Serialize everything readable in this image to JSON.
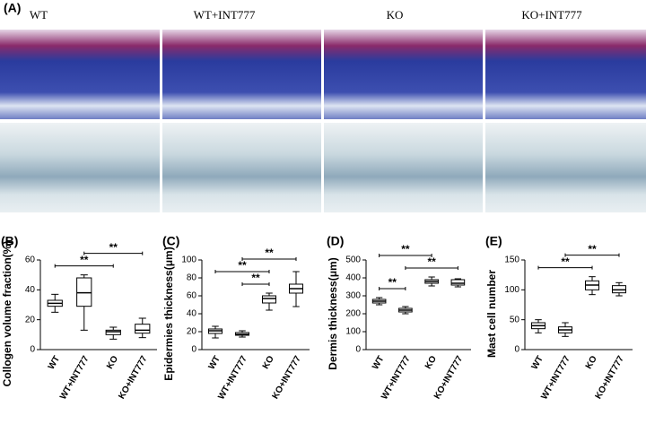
{
  "panel_a": {
    "label": "(A)",
    "columns": [
      "WT",
      "WT+INT777",
      "KO",
      "KO+INT777"
    ]
  },
  "chart_data": [
    {
      "type": "box",
      "panel": "(B)",
      "y_label": "Collogen volume fraction(%)",
      "categories": [
        "WT",
        "WT+INT777",
        "KO",
        "KO+INT777"
      ],
      "boxes": [
        {
          "min": 25,
          "q1": 29,
          "median": 31,
          "q3": 33,
          "max": 37
        },
        {
          "min": 13,
          "q1": 29,
          "median": 38,
          "q3": 48,
          "max": 50
        },
        {
          "min": 7,
          "q1": 10,
          "median": 12,
          "q3": 13,
          "max": 15
        },
        {
          "min": 8,
          "q1": 11,
          "median": 13,
          "q3": 17,
          "max": 21
        }
      ],
      "ylim": [
        0,
        60
      ],
      "yticks": [
        0,
        20,
        40,
        60
      ],
      "annotations": [
        {
          "text": "**",
          "between": [
            "WT",
            "KO"
          ]
        },
        {
          "text": "**",
          "between": [
            "WT+INT777",
            "KO+INT777"
          ]
        }
      ]
    },
    {
      "type": "box",
      "panel": "(C)",
      "y_label": "Epidermies thickness(μm)",
      "categories": [
        "WT",
        "WT+INT777",
        "KO",
        "KO+INT777"
      ],
      "boxes": [
        {
          "min": 13,
          "q1": 18,
          "median": 21,
          "q3": 23,
          "max": 26
        },
        {
          "min": 14,
          "q1": 16,
          "median": 17,
          "q3": 19,
          "max": 21
        },
        {
          "min": 44,
          "q1": 52,
          "median": 57,
          "q3": 60,
          "max": 63
        },
        {
          "min": 48,
          "q1": 63,
          "median": 68,
          "q3": 73,
          "max": 87
        }
      ],
      "ylim": [
        0,
        100
      ],
      "yticks": [
        0,
        20,
        40,
        60,
        80,
        100
      ],
      "annotations": [
        {
          "text": "**",
          "between": [
            "WT+INT777",
            "KO"
          ]
        },
        {
          "text": "**",
          "between": [
            "WT",
            "KO"
          ]
        },
        {
          "text": "**",
          "between": [
            "WT+INT777",
            "KO+INT777"
          ]
        }
      ]
    },
    {
      "type": "box",
      "panel": "(D)",
      "y_label": "Dermis thickness(μm)",
      "categories": [
        "WT",
        "WT+INT777",
        "KO",
        "KO+INT777"
      ],
      "boxes": [
        {
          "min": 250,
          "q1": 260,
          "median": 270,
          "q3": 280,
          "max": 290
        },
        {
          "min": 200,
          "q1": 210,
          "median": 220,
          "q3": 230,
          "max": 240
        },
        {
          "min": 355,
          "q1": 370,
          "median": 380,
          "q3": 390,
          "max": 405
        },
        {
          "min": 350,
          "q1": 360,
          "median": 370,
          "q3": 390,
          "max": 395
        }
      ],
      "ylim": [
        0,
        500
      ],
      "yticks": [
        0,
        100,
        200,
        300,
        400,
        500
      ],
      "annotations": [
        {
          "text": "**",
          "between": [
            "WT",
            "WT+INT777"
          ]
        },
        {
          "text": "**",
          "between": [
            "WT+INT777",
            "KO+INT777"
          ]
        },
        {
          "text": "**",
          "between": [
            "WT",
            "KO"
          ]
        }
      ]
    },
    {
      "type": "box",
      "panel": "(E)",
      "y_label": "Mast cell number",
      "categories": [
        "WT",
        "WT+INT777",
        "KO",
        "KO+INT777"
      ],
      "boxes": [
        {
          "min": 28,
          "q1": 35,
          "median": 40,
          "q3": 45,
          "max": 50
        },
        {
          "min": 22,
          "q1": 28,
          "median": 33,
          "q3": 38,
          "max": 45
        },
        {
          "min": 92,
          "q1": 100,
          "median": 108,
          "q3": 115,
          "max": 122
        },
        {
          "min": 90,
          "q1": 95,
          "median": 100,
          "q3": 107,
          "max": 112
        }
      ],
      "ylim": [
        0,
        150
      ],
      "yticks": [
        0,
        50,
        100,
        150
      ],
      "annotations": [
        {
          "text": "**",
          "between": [
            "WT",
            "KO"
          ]
        },
        {
          "text": "**",
          "between": [
            "WT+INT777",
            "KO+INT777"
          ]
        }
      ]
    }
  ]
}
